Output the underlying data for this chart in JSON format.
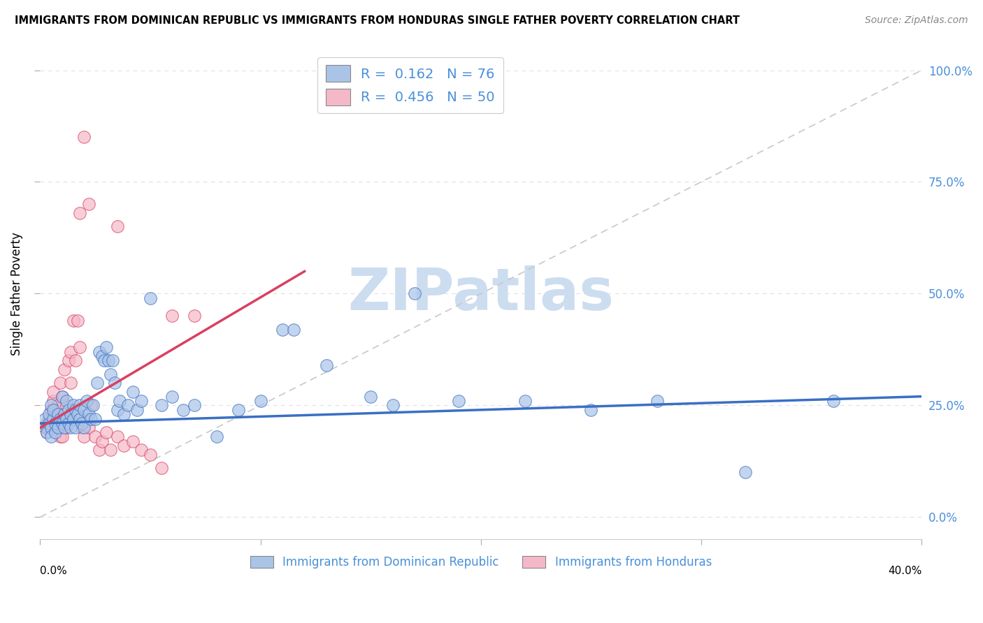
{
  "title": "IMMIGRANTS FROM DOMINICAN REPUBLIC VS IMMIGRANTS FROM HONDURAS SINGLE FATHER POVERTY CORRELATION CHART",
  "source": "Source: ZipAtlas.com",
  "ylabel": "Single Father Poverty",
  "legend1_R": "0.162",
  "legend1_N": "76",
  "legend2_R": "0.456",
  "legend2_N": "50",
  "legend1_label": "Immigrants from Dominican Republic",
  "legend2_label": "Immigrants from Honduras",
  "color_blue": "#aac4e8",
  "color_pink": "#f5b8c8",
  "color_blue_line": "#3a6fc4",
  "color_pink_line": "#d94060",
  "color_diag": "#c8c8c8",
  "color_legend_text": "#4a90d9",
  "scatter_blue": [
    [
      0.002,
      0.22
    ],
    [
      0.003,
      0.2
    ],
    [
      0.003,
      0.19
    ],
    [
      0.004,
      0.21
    ],
    [
      0.004,
      0.23
    ],
    [
      0.005,
      0.2
    ],
    [
      0.005,
      0.25
    ],
    [
      0.005,
      0.18
    ],
    [
      0.006,
      0.22
    ],
    [
      0.006,
      0.24
    ],
    [
      0.007,
      0.19
    ],
    [
      0.007,
      0.21
    ],
    [
      0.008,
      0.23
    ],
    [
      0.008,
      0.2
    ],
    [
      0.009,
      0.22
    ],
    [
      0.01,
      0.27
    ],
    [
      0.01,
      0.21
    ],
    [
      0.011,
      0.23
    ],
    [
      0.011,
      0.2
    ],
    [
      0.012,
      0.26
    ],
    [
      0.012,
      0.22
    ],
    [
      0.013,
      0.24
    ],
    [
      0.013,
      0.21
    ],
    [
      0.014,
      0.23
    ],
    [
      0.014,
      0.2
    ],
    [
      0.015,
      0.25
    ],
    [
      0.015,
      0.22
    ],
    [
      0.016,
      0.24
    ],
    [
      0.016,
      0.2
    ],
    [
      0.017,
      0.23
    ],
    [
      0.018,
      0.25
    ],
    [
      0.018,
      0.22
    ],
    [
      0.019,
      0.21
    ],
    [
      0.02,
      0.24
    ],
    [
      0.02,
      0.2
    ],
    [
      0.021,
      0.26
    ],
    [
      0.022,
      0.23
    ],
    [
      0.023,
      0.22
    ],
    [
      0.024,
      0.25
    ],
    [
      0.025,
      0.22
    ],
    [
      0.026,
      0.3
    ],
    [
      0.027,
      0.37
    ],
    [
      0.028,
      0.36
    ],
    [
      0.029,
      0.35
    ],
    [
      0.03,
      0.38
    ],
    [
      0.031,
      0.35
    ],
    [
      0.032,
      0.32
    ],
    [
      0.033,
      0.35
    ],
    [
      0.034,
      0.3
    ],
    [
      0.035,
      0.24
    ],
    [
      0.036,
      0.26
    ],
    [
      0.038,
      0.23
    ],
    [
      0.04,
      0.25
    ],
    [
      0.042,
      0.28
    ],
    [
      0.044,
      0.24
    ],
    [
      0.046,
      0.26
    ],
    [
      0.05,
      0.49
    ],
    [
      0.055,
      0.25
    ],
    [
      0.06,
      0.27
    ],
    [
      0.065,
      0.24
    ],
    [
      0.07,
      0.25
    ],
    [
      0.08,
      0.18
    ],
    [
      0.09,
      0.24
    ],
    [
      0.1,
      0.26
    ],
    [
      0.11,
      0.42
    ],
    [
      0.115,
      0.42
    ],
    [
      0.13,
      0.34
    ],
    [
      0.15,
      0.27
    ],
    [
      0.16,
      0.25
    ],
    [
      0.17,
      0.5
    ],
    [
      0.19,
      0.26
    ],
    [
      0.22,
      0.26
    ],
    [
      0.25,
      0.24
    ],
    [
      0.28,
      0.26
    ],
    [
      0.32,
      0.1
    ],
    [
      0.36,
      0.26
    ]
  ],
  "scatter_pink": [
    [
      0.002,
      0.2
    ],
    [
      0.003,
      0.19
    ],
    [
      0.003,
      0.21
    ],
    [
      0.004,
      0.22
    ],
    [
      0.004,
      0.2
    ],
    [
      0.005,
      0.22
    ],
    [
      0.005,
      0.24
    ],
    [
      0.006,
      0.26
    ],
    [
      0.006,
      0.28
    ],
    [
      0.007,
      0.24
    ],
    [
      0.007,
      0.2
    ],
    [
      0.008,
      0.25
    ],
    [
      0.008,
      0.22
    ],
    [
      0.009,
      0.3
    ],
    [
      0.009,
      0.18
    ],
    [
      0.01,
      0.27
    ],
    [
      0.01,
      0.18
    ],
    [
      0.011,
      0.33
    ],
    [
      0.012,
      0.25
    ],
    [
      0.012,
      0.2
    ],
    [
      0.013,
      0.35
    ],
    [
      0.013,
      0.22
    ],
    [
      0.014,
      0.37
    ],
    [
      0.014,
      0.3
    ],
    [
      0.015,
      0.44
    ],
    [
      0.016,
      0.35
    ],
    [
      0.017,
      0.44
    ],
    [
      0.018,
      0.38
    ],
    [
      0.019,
      0.2
    ],
    [
      0.02,
      0.18
    ],
    [
      0.021,
      0.22
    ],
    [
      0.022,
      0.2
    ],
    [
      0.023,
      0.25
    ],
    [
      0.025,
      0.18
    ],
    [
      0.027,
      0.15
    ],
    [
      0.028,
      0.17
    ],
    [
      0.03,
      0.19
    ],
    [
      0.032,
      0.15
    ],
    [
      0.035,
      0.18
    ],
    [
      0.038,
      0.16
    ],
    [
      0.042,
      0.17
    ],
    [
      0.046,
      0.15
    ],
    [
      0.05,
      0.14
    ],
    [
      0.055,
      0.11
    ],
    [
      0.018,
      0.68
    ],
    [
      0.02,
      0.85
    ],
    [
      0.022,
      0.7
    ],
    [
      0.035,
      0.65
    ],
    [
      0.06,
      0.45
    ],
    [
      0.07,
      0.45
    ]
  ],
  "xlim": [
    0.0,
    0.4
  ],
  "ylim": [
    -0.05,
    1.05
  ],
  "xticks": [
    0.0,
    0.1,
    0.2,
    0.3,
    0.4
  ],
  "yticks": [
    0.0,
    0.25,
    0.5,
    0.75,
    1.0
  ],
  "watermark": "ZIPatlas",
  "watermark_color": "#cdddf0",
  "blue_trend": [
    0.21,
    0.27
  ],
  "pink_trend_x": [
    0.0,
    0.12
  ],
  "pink_trend_y": [
    0.2,
    0.55
  ]
}
